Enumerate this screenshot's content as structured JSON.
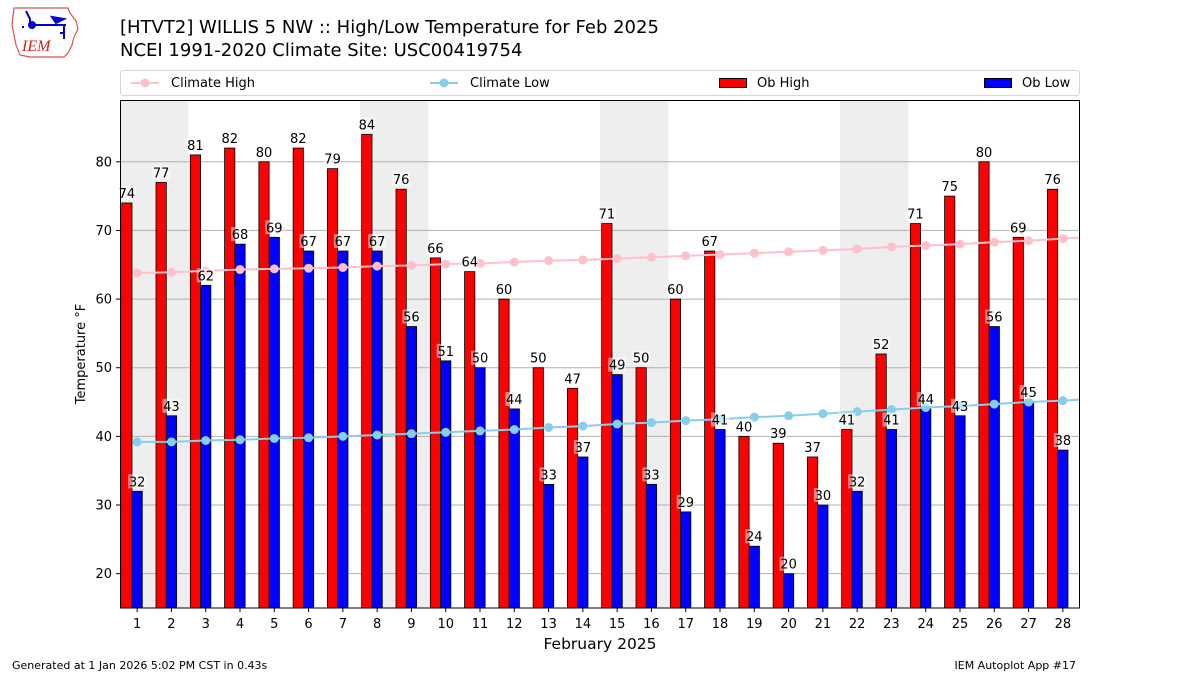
{
  "header": {
    "title_line1": "[HTVT2] WILLIS 5 NW :: High/Low Temperature for Feb 2025",
    "title_line2": "NCEI 1991-2020 Climate Site: USC00419754",
    "logo_text": "IEM"
  },
  "legend": {
    "items": [
      {
        "label": "Climate High",
        "kind": "line-marker",
        "color": "#ffc0cb"
      },
      {
        "label": "Climate Low",
        "kind": "line-marker",
        "color": "#87ceeb"
      },
      {
        "label": "Ob High",
        "kind": "patch",
        "color": "#ff0000"
      },
      {
        "label": "Ob Low",
        "kind": "patch",
        "color": "#0000ff"
      }
    ]
  },
  "footer": {
    "generated": "Generated at 1 Jan 2026 5:02 PM CST in 0.43s",
    "app": "IEM Autoplot App #17"
  },
  "chart_data": {
    "type": "bar",
    "title": "[HTVT2] WILLIS 5 NW :: High/Low Temperature for Feb 2025",
    "subtitle": "NCEI 1991-2020 Climate Site: USC00419754",
    "xlabel": "February 2025",
    "ylabel": "Temperature °F",
    "xlim": [
      0.5,
      28.5
    ],
    "ylim": [
      15,
      89
    ],
    "yticks": [
      20,
      30,
      40,
      50,
      60,
      70,
      80
    ],
    "grid": "y",
    "legend_position": "top",
    "categories": [
      1,
      2,
      3,
      4,
      5,
      6,
      7,
      8,
      9,
      10,
      11,
      12,
      13,
      14,
      15,
      16,
      17,
      18,
      19,
      20,
      21,
      22,
      23,
      24,
      25,
      26,
      27,
      28
    ],
    "weekend_bands": [
      [
        1,
        2
      ],
      [
        8,
        9
      ],
      [
        15,
        16
      ],
      [
        22,
        23
      ]
    ],
    "series": [
      {
        "name": "Ob High",
        "type": "bar",
        "color": "#ff0000",
        "values": [
          74,
          77,
          81,
          82,
          80,
          82,
          79,
          84,
          76,
          66,
          64,
          60,
          50,
          47,
          71,
          50,
          60,
          67,
          40,
          39,
          37,
          41,
          52,
          71,
          75,
          80,
          69,
          76
        ]
      },
      {
        "name": "Ob Low",
        "type": "bar",
        "color": "#0000ff",
        "values": [
          32,
          43,
          62,
          68,
          69,
          67,
          67,
          67,
          56,
          51,
          50,
          44,
          33,
          37,
          49,
          33,
          29,
          41,
          24,
          20,
          30,
          32,
          41,
          44,
          43,
          56,
          45,
          38
        ]
      },
      {
        "name": "Climate High",
        "type": "line",
        "color": "#ffc0cb",
        "values": [
          63.8,
          63.9,
          64.1,
          64.3,
          64.4,
          64.5,
          64.6,
          64.8,
          64.9,
          65.1,
          65.2,
          65.4,
          65.6,
          65.7,
          65.9,
          66.1,
          66.3,
          66.5,
          66.7,
          66.9,
          67.1,
          67.3,
          67.6,
          67.8,
          68.0,
          68.3,
          68.5,
          68.8
        ],
        "next_value": 69.1
      },
      {
        "name": "Climate Low",
        "type": "line",
        "color": "#87ceeb",
        "values": [
          39.2,
          39.2,
          39.4,
          39.5,
          39.7,
          39.8,
          40.0,
          40.2,
          40.4,
          40.6,
          40.8,
          41.0,
          41.3,
          41.5,
          41.8,
          42.0,
          42.3,
          42.5,
          42.8,
          43.0,
          43.3,
          43.6,
          43.9,
          44.2,
          44.4,
          44.7,
          45.0,
          45.2
        ],
        "next_value": 45.5
      }
    ]
  }
}
